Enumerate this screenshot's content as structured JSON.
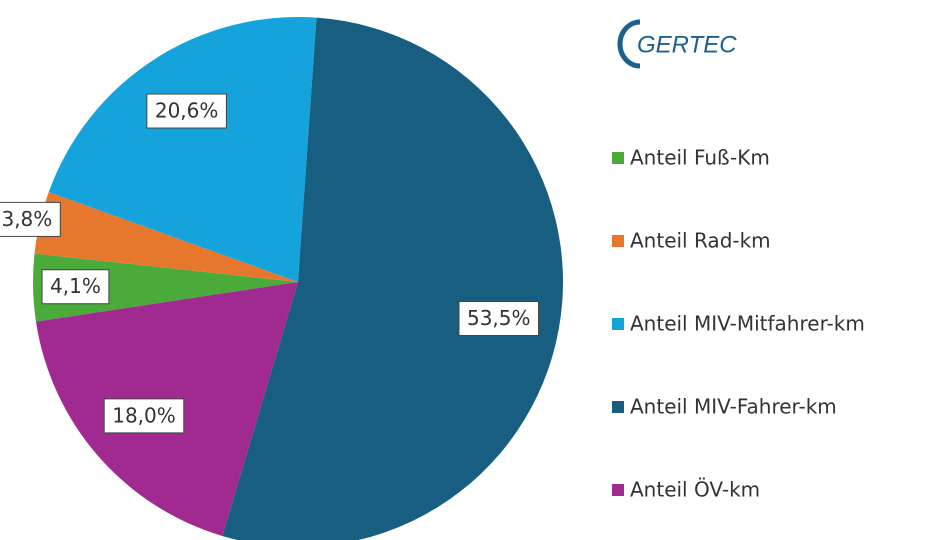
{
  "logo": "GERTEC",
  "chart_data": {
    "type": "pie",
    "categories": [
      "Anteil Fuß-Km",
      "Anteil Rad-km",
      "Anteil MIV-Mitfahrer-km",
      "Anteil MIV-Fahrer-km",
      "Anteil ÖV-km"
    ],
    "values": [
      4.1,
      3.8,
      20.6,
      53.5,
      18.0
    ],
    "value_labels": [
      "4,1%",
      "3,8%",
      "20,6%",
      "53,5%",
      "18,0%"
    ],
    "colors": [
      "#4aab3a",
      "#e8772e",
      "#15a3dc",
      "#175e80",
      "#a02a8f"
    ],
    "legend": "right"
  }
}
